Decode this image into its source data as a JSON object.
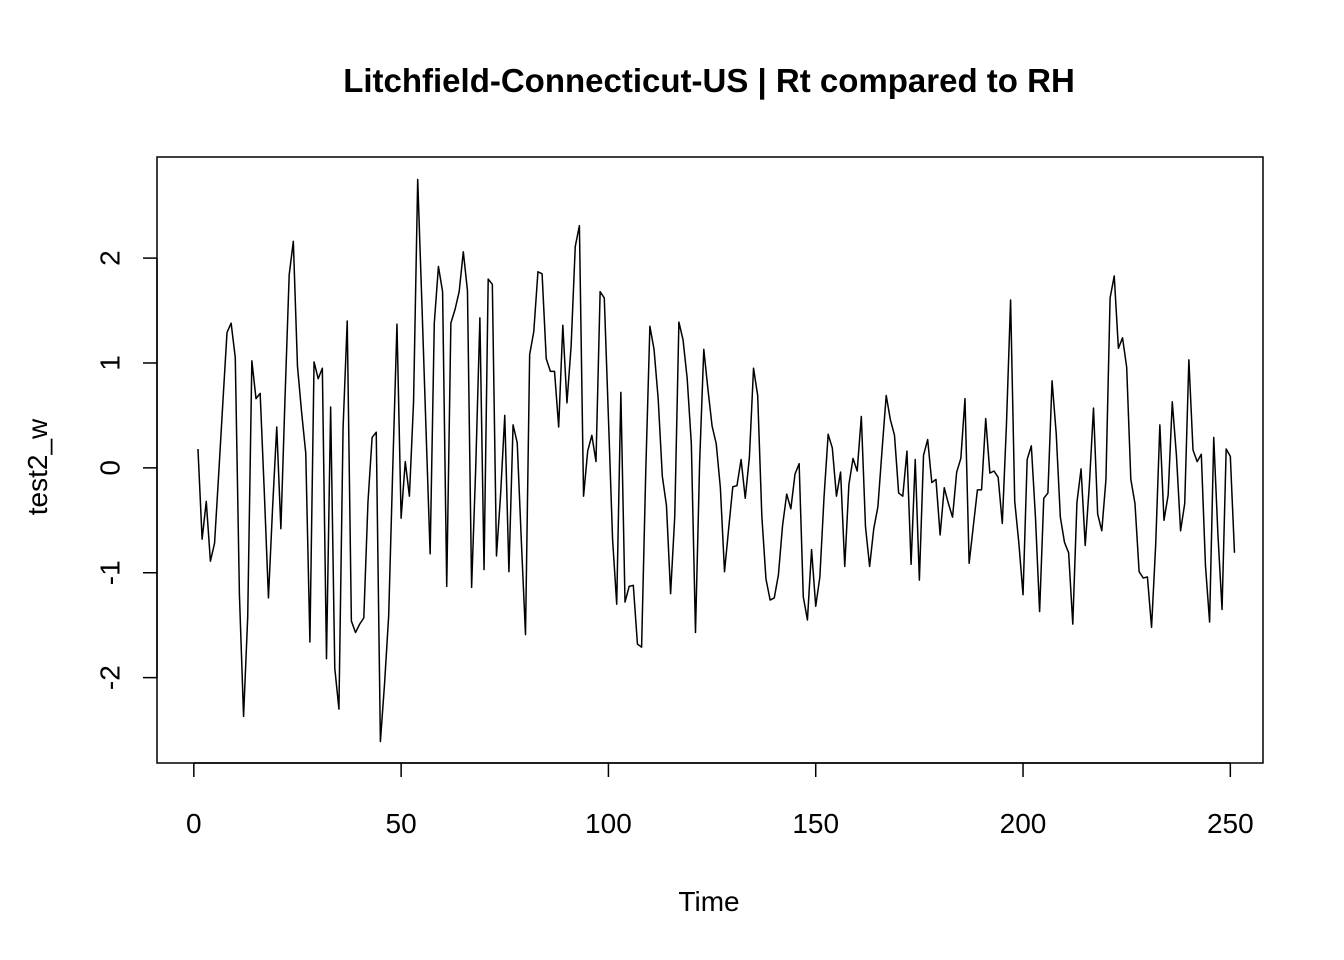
{
  "chart_data": {
    "type": "line",
    "title": "Litchfield-Connecticut-US | Rt compared to RH",
    "xlabel": "Time",
    "ylabel": "test2_w",
    "xlim": [
      1,
      248
    ],
    "ylim": [
      -2.6,
      2.75
    ],
    "xticks": [
      0,
      50,
      100,
      150,
      200,
      250
    ],
    "yticks": [
      -2,
      -1,
      0,
      1,
      2
    ],
    "grid": false,
    "legend": "none",
    "line_color": "#000000",
    "series": [
      {
        "values": [
          0.18,
          -0.68,
          -0.32,
          -0.89,
          -0.72,
          -0.06,
          0.62,
          1.29,
          1.38,
          1.05,
          -1.21,
          -2.37,
          -1.42,
          1.02,
          0.66,
          0.71,
          -0.23,
          -1.24,
          -0.38,
          0.39,
          -0.58,
          0.67,
          1.84,
          2.16,
          0.97,
          0.53,
          0.14,
          -1.66,
          1.01,
          0.85,
          0.95,
          -1.82,
          0.58,
          -1.91,
          -2.3,
          0.38,
          1.4,
          -1.46,
          -1.57,
          -1.49,
          -1.43,
          -0.33,
          0.29,
          0.34,
          -2.61,
          -2.06,
          -1.41,
          0.02,
          1.37,
          -0.48,
          0.06,
          -0.27,
          0.63,
          2.75,
          1.58,
          0.37,
          -0.82,
          1.38,
          1.92,
          1.68,
          -1.13,
          1.38,
          1.51,
          1.68,
          2.06,
          1.69,
          -1.14,
          0.01,
          1.43,
          -0.97,
          1.8,
          1.75,
          -0.84,
          -0.25,
          0.5,
          -0.99,
          0.41,
          0.24,
          -0.7,
          -1.59,
          1.08,
          1.3,
          1.87,
          1.85,
          1.04,
          0.92,
          0.92,
          0.39,
          1.36,
          0.62,
          1.16,
          2.11,
          2.31,
          -0.27,
          0.16,
          0.31,
          0.06,
          1.68,
          1.62,
          0.48,
          -0.68,
          -1.3,
          0.72,
          -1.28,
          -1.13,
          -1.12,
          -1.68,
          -1.71,
          -0.04,
          1.35,
          1.13,
          0.66,
          -0.08,
          -0.36,
          -1.2,
          -0.46,
          1.39,
          1.22,
          0.85,
          0.23,
          -1.57,
          0.05,
          1.13,
          0.75,
          0.4,
          0.23,
          -0.19,
          -0.99,
          -0.58,
          -0.18,
          -0.17,
          0.08,
          -0.29,
          0.1,
          0.95,
          0.69,
          -0.46,
          -1.06,
          -1.26,
          -1.24,
          -1.02,
          -0.55,
          -0.25,
          -0.39,
          -0.06,
          0.04,
          -1.23,
          -1.45,
          -0.78,
          -1.32,
          -1.04,
          -0.28,
          0.32,
          0.19,
          -0.27,
          -0.04,
          -0.94,
          -0.16,
          0.09,
          -0.03,
          0.49,
          -0.56,
          -0.94,
          -0.58,
          -0.37,
          0.17,
          0.69,
          0.46,
          0.31,
          -0.24,
          -0.27,
          0.16,
          -0.92,
          0.08,
          -1.07,
          0.12,
          0.27,
          -0.14,
          -0.11,
          -0.64,
          -0.19,
          -0.34,
          -0.47,
          -0.04,
          0.09,
          0.66,
          -0.91,
          -0.56,
          -0.21,
          -0.21,
          0.47,
          -0.05,
          -0.03,
          -0.09,
          -0.53,
          0.41,
          1.6,
          -0.32,
          -0.72,
          -1.21,
          0.08,
          0.21,
          -0.47,
          -1.37,
          -0.29,
          -0.24,
          0.83,
          0.33,
          -0.47,
          -0.71,
          -0.81,
          -1.49,
          -0.33,
          -0.01,
          -0.74,
          -0.16,
          0.57,
          -0.44,
          -0.6,
          -0.11,
          1.62,
          1.83,
          1.14,
          1.24,
          0.96,
          -0.11,
          -0.34,
          -0.99,
          -1.05,
          -1.04,
          -1.52,
          -0.73,
          0.41,
          -0.5,
          -0.26,
          0.63,
          0.12,
          -0.6,
          -0.34,
          1.03,
          0.17,
          0.06,
          0.13,
          -0.93,
          -1.47,
          0.29,
          -0.63,
          -1.35,
          0.18,
          0.11,
          -0.81
        ]
      }
    ]
  }
}
